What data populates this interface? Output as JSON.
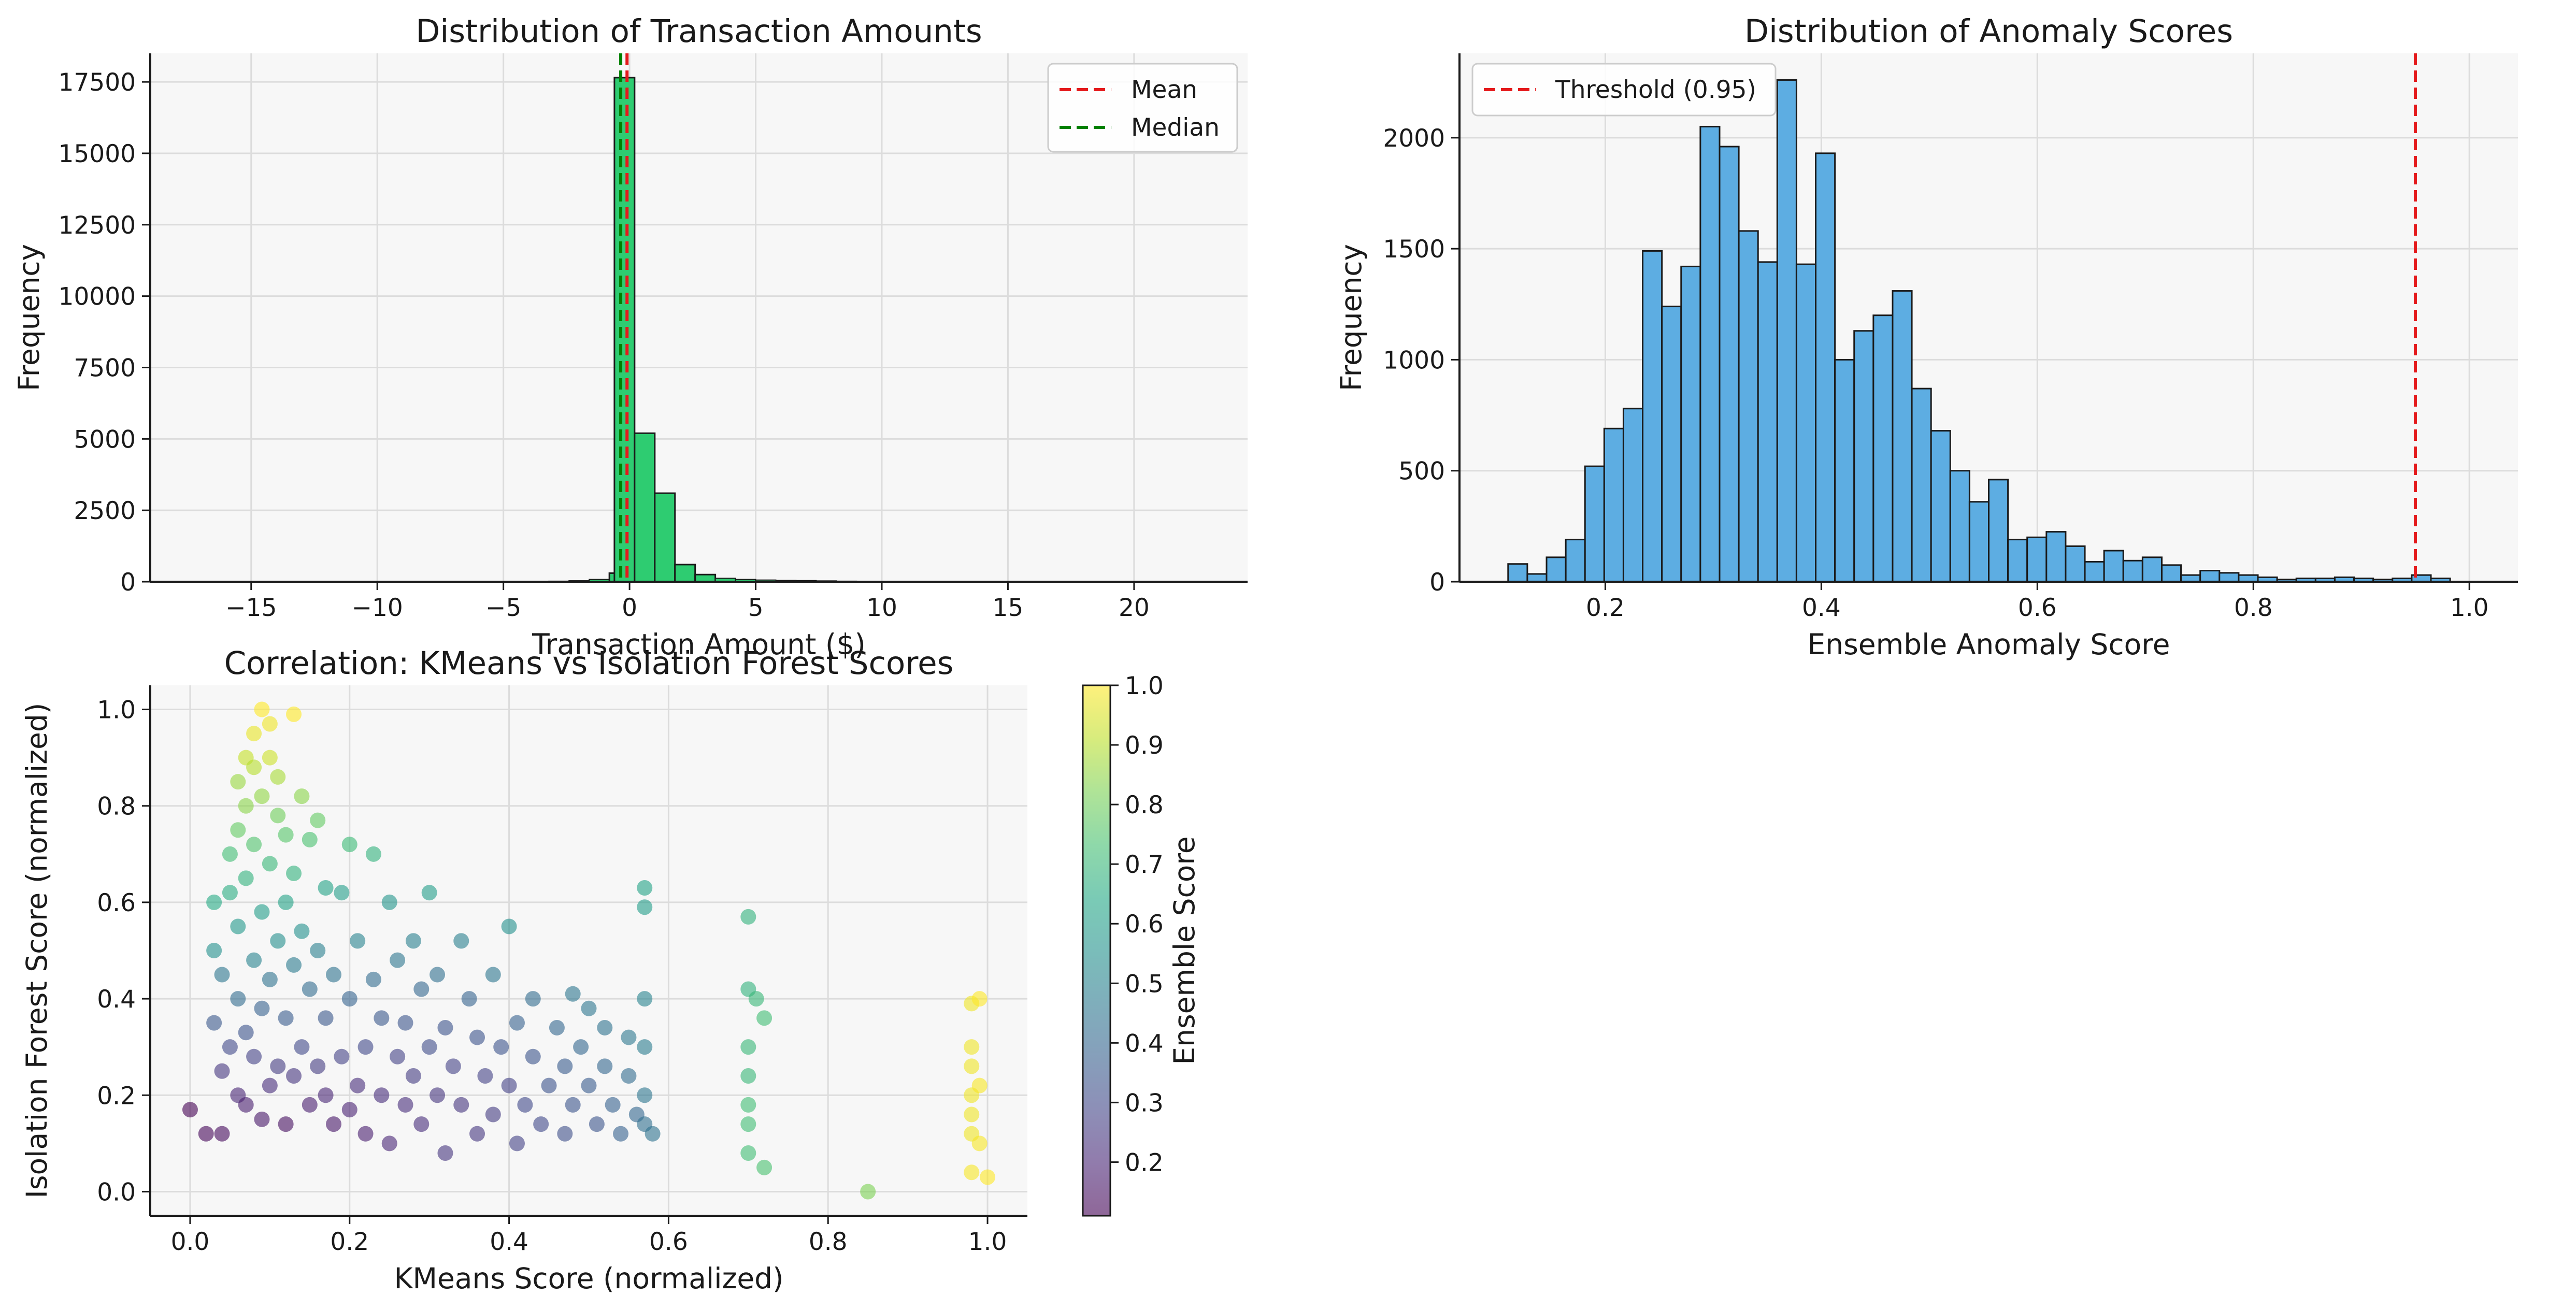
{
  "figure": {
    "background": "#ffffff",
    "axes_background": "#f7f7f7",
    "grid_color": "#dcdcdc"
  },
  "chart_data": [
    {
      "type": "bar",
      "id": "amount_hist",
      "title": "Distribution of Transaction Amounts",
      "xlabel": "Transaction Amount ($)",
      "ylabel": "Frequency",
      "xlim": [
        -19,
        24.5
      ],
      "ylim": [
        0,
        18500
      ],
      "xticks": [
        -15,
        -10,
        -5,
        0,
        5,
        10,
        15,
        20
      ],
      "xtick_labels": [
        "−15",
        "−10",
        "−5",
        "0",
        "5",
        "10",
        "15",
        "20"
      ],
      "yticks": [
        0,
        2500,
        5000,
        7500,
        10000,
        12500,
        15000,
        17500
      ],
      "grid": true,
      "bar_color": "#2ecc71",
      "edge_color": "#1a1a1a",
      "bin_width": 0.8,
      "bins": [
        {
          "x0": -17.6,
          "count": 2
        },
        {
          "x0": -16.8,
          "count": 1
        },
        {
          "x0": -16.0,
          "count": 1
        },
        {
          "x0": -15.2,
          "count": 1
        },
        {
          "x0": -14.4,
          "count": 1
        },
        {
          "x0": -13.6,
          "count": 1
        },
        {
          "x0": -12.8,
          "count": 2
        },
        {
          "x0": -12.0,
          "count": 2
        },
        {
          "x0": -11.2,
          "count": 2
        },
        {
          "x0": -10.4,
          "count": 3
        },
        {
          "x0": -9.6,
          "count": 3
        },
        {
          "x0": -8.8,
          "count": 4
        },
        {
          "x0": -8.0,
          "count": 4
        },
        {
          "x0": -7.2,
          "count": 5
        },
        {
          "x0": -6.4,
          "count": 6
        },
        {
          "x0": -5.6,
          "count": 8
        },
        {
          "x0": -4.8,
          "count": 10
        },
        {
          "x0": -4.0,
          "count": 15
        },
        {
          "x0": -3.2,
          "count": 20
        },
        {
          "x0": -2.4,
          "count": 35
        },
        {
          "x0": -1.6,
          "count": 80
        },
        {
          "x0": -0.8,
          "count": 300
        },
        {
          "x0": -0.6,
          "count": 17650,
          "width": 0.8
        },
        {
          "x0": 0.2,
          "count": 5200
        },
        {
          "x0": 1.0,
          "count": 3100
        },
        {
          "x0": 1.8,
          "count": 600
        },
        {
          "x0": 2.6,
          "count": 250
        },
        {
          "x0": 3.4,
          "count": 120
        },
        {
          "x0": 4.2,
          "count": 80
        },
        {
          "x0": 5.0,
          "count": 60
        },
        {
          "x0": 5.8,
          "count": 45
        },
        {
          "x0": 6.6,
          "count": 40
        },
        {
          "x0": 7.4,
          "count": 30
        },
        {
          "x0": 8.2,
          "count": 20
        },
        {
          "x0": 9.0,
          "count": 15
        },
        {
          "x0": 9.8,
          "count": 12
        },
        {
          "x0": 10.6,
          "count": 10
        },
        {
          "x0": 11.4,
          "count": 8
        },
        {
          "x0": 12.2,
          "count": 7
        },
        {
          "x0": 13.0,
          "count": 6
        },
        {
          "x0": 13.8,
          "count": 5
        },
        {
          "x0": 14.6,
          "count": 4
        },
        {
          "x0": 15.4,
          "count": 4
        },
        {
          "x0": 16.2,
          "count": 3
        },
        {
          "x0": 17.0,
          "count": 3
        },
        {
          "x0": 17.8,
          "count": 2
        },
        {
          "x0": 18.6,
          "count": 2
        },
        {
          "x0": 19.4,
          "count": 2
        },
        {
          "x0": 20.2,
          "count": 1
        },
        {
          "x0": 21.0,
          "count": 1
        },
        {
          "x0": 21.8,
          "count": 1
        },
        {
          "x0": 22.6,
          "count": 1
        }
      ],
      "reference_lines": [
        {
          "name": "Mean",
          "x": -0.1,
          "color": "#e41a1c"
        },
        {
          "name": "Median",
          "x": -0.35,
          "color": "#008000"
        }
      ],
      "legend": {
        "placement": "top-right",
        "entries": [
          "Mean",
          "Median"
        ]
      }
    },
    {
      "type": "bar",
      "id": "score_hist",
      "title": "Distribution of Anomaly Scores",
      "xlabel": "Ensemble Anomaly Score",
      "ylabel": "Frequency",
      "xlim": [
        0.065,
        1.045
      ],
      "ylim": [
        0,
        2380
      ],
      "xticks": [
        0.2,
        0.4,
        0.6,
        0.8,
        1.0
      ],
      "xtick_labels": [
        "0.2",
        "0.4",
        "0.6",
        "0.8",
        "1.0"
      ],
      "yticks": [
        0,
        500,
        1000,
        1500,
        2000
      ],
      "grid": true,
      "bar_color": "#5dade2",
      "edge_color": "#1a1a1a",
      "bin_start": 0.11,
      "bin_width": 0.0178,
      "counts": [
        80,
        35,
        110,
        190,
        520,
        690,
        780,
        1490,
        1240,
        1420,
        2050,
        1960,
        1580,
        1440,
        2260,
        1430,
        1930,
        1000,
        1130,
        1200,
        1310,
        870,
        680,
        500,
        360,
        460,
        190,
        200,
        225,
        160,
        90,
        140,
        95,
        110,
        75,
        30,
        50,
        40,
        30,
        20,
        10,
        15,
        15,
        20,
        15,
        10,
        15,
        30,
        15
      ],
      "reference_lines": [
        {
          "name": "Threshold (0.95)",
          "x": 0.95,
          "color": "#e41a1c"
        }
      ],
      "legend": {
        "placement": "top-left",
        "entries": [
          "Threshold (0.95)"
        ]
      }
    },
    {
      "type": "scatter",
      "id": "score_scatter",
      "title": "Correlation: KMeans vs Isolation Forest Scores",
      "xlabel": "KMeans Score (normalized)",
      "ylabel": "Isolation Forest Score (normalized)",
      "xlim": [
        -0.05,
        1.05
      ],
      "ylim": [
        -0.05,
        1.05
      ],
      "xticks": [
        0.0,
        0.2,
        0.4,
        0.6,
        0.8,
        1.0
      ],
      "xtick_labels": [
        "0.0",
        "0.2",
        "0.4",
        "0.6",
        "0.8",
        "1.0"
      ],
      "yticks": [
        0.0,
        0.2,
        0.4,
        0.6,
        0.8,
        1.0
      ],
      "ytick_labels": [
        "0.0",
        "0.2",
        "0.4",
        "0.6",
        "0.8",
        "1.0"
      ],
      "grid": true,
      "colormap": "viridis",
      "alpha": 0.6,
      "colorbar": {
        "label": "Ensemble Score",
        "range": [
          0.11,
          1.0
        ],
        "ticks": [
          0.2,
          0.3,
          0.4,
          0.5,
          0.6,
          0.7,
          0.8,
          0.9,
          1.0
        ],
        "tick_labels": [
          "0.2",
          "0.3",
          "0.4",
          "0.5",
          "0.6",
          "0.7",
          "0.8",
          "0.9",
          "1.0"
        ]
      },
      "points": [
        [
          0.0,
          0.17,
          0.11
        ],
        [
          0.02,
          0.12,
          0.12
        ],
        [
          0.04,
          0.12,
          0.13
        ],
        [
          0.03,
          0.35,
          0.35
        ],
        [
          0.03,
          0.5,
          0.55
        ],
        [
          0.03,
          0.6,
          0.65
        ],
        [
          0.04,
          0.25,
          0.25
        ],
        [
          0.04,
          0.45,
          0.45
        ],
        [
          0.05,
          0.3,
          0.3
        ],
        [
          0.05,
          0.62,
          0.66
        ],
        [
          0.05,
          0.7,
          0.72
        ],
        [
          0.06,
          0.2,
          0.2
        ],
        [
          0.06,
          0.4,
          0.42
        ],
        [
          0.06,
          0.55,
          0.58
        ],
        [
          0.06,
          0.75,
          0.78
        ],
        [
          0.06,
          0.85,
          0.86
        ],
        [
          0.07,
          0.18,
          0.18
        ],
        [
          0.07,
          0.33,
          0.33
        ],
        [
          0.07,
          0.65,
          0.68
        ],
        [
          0.07,
          0.8,
          0.84
        ],
        [
          0.07,
          0.9,
          0.92
        ],
        [
          0.08,
          0.28,
          0.28
        ],
        [
          0.08,
          0.48,
          0.5
        ],
        [
          0.08,
          0.72,
          0.75
        ],
        [
          0.08,
          0.88,
          0.9
        ],
        [
          0.08,
          0.95,
          0.97
        ],
        [
          0.09,
          0.15,
          0.16
        ],
        [
          0.09,
          0.38,
          0.38
        ],
        [
          0.09,
          0.58,
          0.6
        ],
        [
          0.09,
          0.82,
          0.85
        ],
        [
          0.09,
          1.0,
          1.0
        ],
        [
          0.1,
          0.22,
          0.22
        ],
        [
          0.1,
          0.44,
          0.44
        ],
        [
          0.1,
          0.68,
          0.7
        ],
        [
          0.1,
          0.9,
          0.93
        ],
        [
          0.1,
          0.97,
          0.98
        ],
        [
          0.11,
          0.26,
          0.26
        ],
        [
          0.11,
          0.52,
          0.54
        ],
        [
          0.11,
          0.78,
          0.8
        ],
        [
          0.11,
          0.86,
          0.88
        ],
        [
          0.12,
          0.14,
          0.14
        ],
        [
          0.12,
          0.36,
          0.36
        ],
        [
          0.12,
          0.6,
          0.62
        ],
        [
          0.12,
          0.74,
          0.76
        ],
        [
          0.13,
          0.99,
          1.0
        ],
        [
          0.13,
          0.24,
          0.24
        ],
        [
          0.13,
          0.47,
          0.47
        ],
        [
          0.13,
          0.66,
          0.68
        ],
        [
          0.14,
          0.82,
          0.84
        ],
        [
          0.14,
          0.3,
          0.3
        ],
        [
          0.14,
          0.54,
          0.55
        ],
        [
          0.15,
          0.18,
          0.18
        ],
        [
          0.15,
          0.42,
          0.42
        ],
        [
          0.15,
          0.73,
          0.74
        ],
        [
          0.16,
          0.26,
          0.26
        ],
        [
          0.16,
          0.5,
          0.49
        ],
        [
          0.16,
          0.77,
          0.78
        ],
        [
          0.17,
          0.2,
          0.2
        ],
        [
          0.17,
          0.36,
          0.35
        ],
        [
          0.17,
          0.63,
          0.62
        ],
        [
          0.18,
          0.14,
          0.16
        ],
        [
          0.18,
          0.45,
          0.44
        ],
        [
          0.19,
          0.28,
          0.28
        ],
        [
          0.19,
          0.62,
          0.6
        ],
        [
          0.2,
          0.17,
          0.19
        ],
        [
          0.2,
          0.4,
          0.39
        ],
        [
          0.2,
          0.72,
          0.71
        ],
        [
          0.21,
          0.22,
          0.22
        ],
        [
          0.21,
          0.52,
          0.5
        ],
        [
          0.22,
          0.3,
          0.3
        ],
        [
          0.22,
          0.12,
          0.18
        ],
        [
          0.23,
          0.44,
          0.42
        ],
        [
          0.23,
          0.7,
          0.68
        ],
        [
          0.24,
          0.2,
          0.22
        ],
        [
          0.24,
          0.36,
          0.35
        ],
        [
          0.25,
          0.6,
          0.57
        ],
        [
          0.25,
          0.1,
          0.2
        ],
        [
          0.26,
          0.28,
          0.28
        ],
        [
          0.26,
          0.48,
          0.45
        ],
        [
          0.27,
          0.18,
          0.22
        ],
        [
          0.27,
          0.35,
          0.34
        ],
        [
          0.28,
          0.24,
          0.26
        ],
        [
          0.28,
          0.52,
          0.49
        ],
        [
          0.29,
          0.42,
          0.4
        ],
        [
          0.29,
          0.14,
          0.22
        ],
        [
          0.3,
          0.3,
          0.31
        ],
        [
          0.3,
          0.62,
          0.6
        ],
        [
          0.31,
          0.2,
          0.24
        ],
        [
          0.31,
          0.45,
          0.43
        ],
        [
          0.32,
          0.34,
          0.33
        ],
        [
          0.32,
          0.08,
          0.24
        ],
        [
          0.33,
          0.26,
          0.28
        ],
        [
          0.34,
          0.52,
          0.49
        ],
        [
          0.34,
          0.18,
          0.24
        ],
        [
          0.35,
          0.4,
          0.39
        ],
        [
          0.36,
          0.32,
          0.33
        ],
        [
          0.36,
          0.12,
          0.25
        ],
        [
          0.37,
          0.24,
          0.28
        ],
        [
          0.38,
          0.45,
          0.45
        ],
        [
          0.38,
          0.16,
          0.26
        ],
        [
          0.39,
          0.3,
          0.33
        ],
        [
          0.4,
          0.22,
          0.28
        ],
        [
          0.4,
          0.55,
          0.55
        ],
        [
          0.41,
          0.35,
          0.38
        ],
        [
          0.41,
          0.1,
          0.28
        ],
        [
          0.42,
          0.18,
          0.3
        ],
        [
          0.43,
          0.28,
          0.34
        ],
        [
          0.43,
          0.4,
          0.42
        ],
        [
          0.44,
          0.14,
          0.3
        ],
        [
          0.45,
          0.22,
          0.33
        ],
        [
          0.46,
          0.34,
          0.4
        ],
        [
          0.47,
          0.12,
          0.32
        ],
        [
          0.47,
          0.26,
          0.36
        ],
        [
          0.48,
          0.41,
          0.45
        ],
        [
          0.48,
          0.18,
          0.34
        ],
        [
          0.49,
          0.3,
          0.4
        ],
        [
          0.5,
          0.22,
          0.36
        ],
        [
          0.5,
          0.38,
          0.45
        ],
        [
          0.51,
          0.14,
          0.34
        ],
        [
          0.52,
          0.34,
          0.44
        ],
        [
          0.52,
          0.26,
          0.4
        ],
        [
          0.53,
          0.18,
          0.38
        ],
        [
          0.54,
          0.12,
          0.38
        ],
        [
          0.55,
          0.24,
          0.42
        ],
        [
          0.55,
          0.32,
          0.46
        ],
        [
          0.56,
          0.16,
          0.4
        ],
        [
          0.57,
          0.63,
          0.62
        ],
        [
          0.57,
          0.59,
          0.6
        ],
        [
          0.57,
          0.4,
          0.5
        ],
        [
          0.57,
          0.3,
          0.48
        ],
        [
          0.57,
          0.2,
          0.45
        ],
        [
          0.57,
          0.14,
          0.43
        ],
        [
          0.58,
          0.12,
          0.44
        ],
        [
          0.7,
          0.57,
          0.68
        ],
        [
          0.7,
          0.42,
          0.68
        ],
        [
          0.7,
          0.3,
          0.7
        ],
        [
          0.7,
          0.24,
          0.7
        ],
        [
          0.7,
          0.18,
          0.72
        ],
        [
          0.7,
          0.14,
          0.72
        ],
        [
          0.7,
          0.08,
          0.72
        ],
        [
          0.71,
          0.4,
          0.7
        ],
        [
          0.72,
          0.36,
          0.72
        ],
        [
          0.72,
          0.05,
          0.74
        ],
        [
          0.85,
          0.0,
          0.82
        ],
        [
          0.98,
          0.39,
          0.98
        ],
        [
          0.98,
          0.3,
          0.98
        ],
        [
          0.98,
          0.26,
          0.98
        ],
        [
          0.98,
          0.2,
          0.98
        ],
        [
          0.98,
          0.16,
          0.98
        ],
        [
          0.98,
          0.12,
          0.98
        ],
        [
          0.98,
          0.04,
          0.99
        ],
        [
          0.99,
          0.4,
          1.0
        ],
        [
          0.99,
          0.22,
          0.99
        ],
        [
          0.99,
          0.1,
          0.99
        ],
        [
          1.0,
          0.03,
          1.0
        ]
      ]
    }
  ]
}
